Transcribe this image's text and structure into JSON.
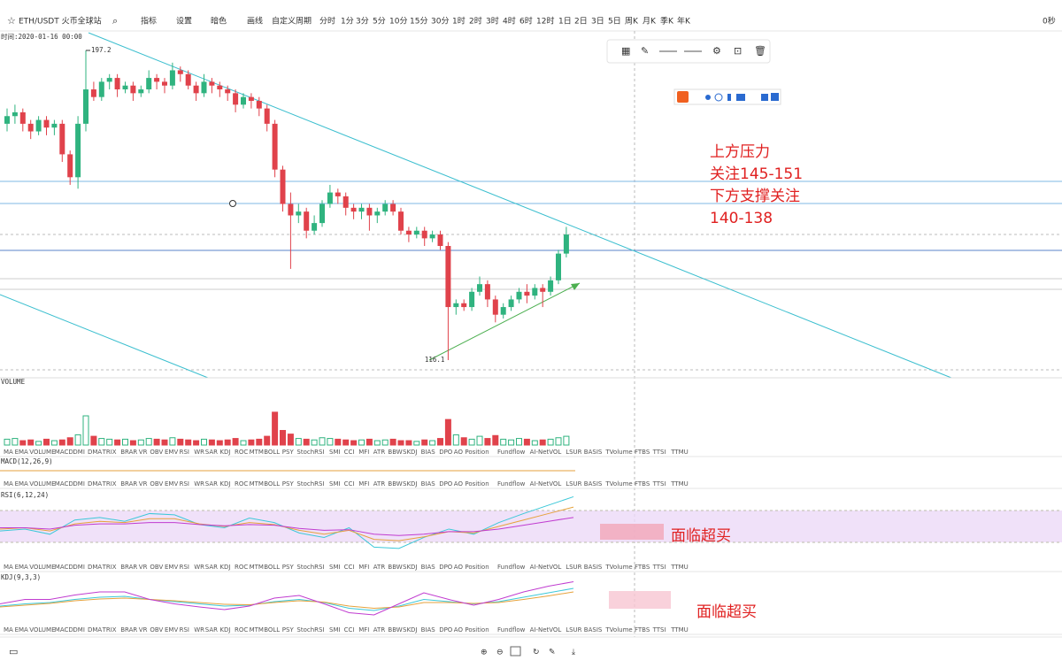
{
  "toolbar": {
    "symbol": "ETH/USDT 火币全球站",
    "tools": [
      "指标",
      "设置",
      "暗色",
      "画线"
    ],
    "custom_period": "自定义周期",
    "periods": [
      "分时",
      "1分",
      "3分",
      "5分",
      "10分",
      "15分",
      "30分",
      "1时",
      "2时",
      "3时",
      "4时",
      "6时",
      "12时",
      "1日",
      "2日",
      "3日",
      "5日",
      "周K",
      "月K",
      "季K",
      "年K"
    ],
    "active_period": "1日",
    "timer": "0秒"
  },
  "time_label": "时间:2020-01-16 00:00",
  "annotations": [
    "上方压力",
    "关注145-151",
    "下方支撑关注",
    "140-138"
  ],
  "indicator_tabs": [
    "MA",
    "EMA",
    "VOLUME",
    "MACD",
    "DMI",
    "DMA",
    "TRIX",
    "BRAR",
    "VR",
    "OBV",
    "EMV",
    "RSI",
    "WR",
    "SAR",
    "KDJ",
    "ROC",
    "MTM",
    "BOLL",
    "PSY",
    "StochRSI",
    "SMI",
    "CCI",
    "MFI",
    "ATR",
    "BBW",
    "SKDJ",
    "BIAS",
    "DPO",
    "AO",
    "Position",
    "Fundflow",
    "AI-NetVOL",
    "LSUR",
    "BASIS",
    "TVolume",
    "FTBS",
    "TTSI",
    "TTMU"
  ],
  "panels": {
    "volume": {
      "label": "VOLUME",
      "active": "VOLUME"
    },
    "macd": {
      "label": "MACD(12,26,9)",
      "active": "MACD"
    },
    "rsi": {
      "label": "RSI(6,12,24)",
      "active": "RSI",
      "note": "面临超买"
    },
    "kdj": {
      "label": "KDJ(9,3,3)",
      "active": "KDJ",
      "note": "面临超买"
    }
  },
  "chart_data": {
    "type": "candlestick",
    "ylim": [
      113.1,
      202.3
    ],
    "up_color": "#2fb37f",
    "down_color": "#e0424b",
    "high_label": 197.2,
    "low_label": 116.1,
    "high_index": 10,
    "low_index": 56,
    "candles": [
      [
        178,
        182,
        176,
        180
      ],
      [
        180,
        183,
        178,
        181
      ],
      [
        181,
        182,
        176,
        178
      ],
      [
        178,
        179,
        174,
        176
      ],
      [
        176,
        180,
        175,
        179
      ],
      [
        179,
        180,
        175,
        177
      ],
      [
        177,
        179,
        175,
        178
      ],
      [
        178,
        179,
        168,
        170
      ],
      [
        170,
        171,
        162,
        164
      ],
      [
        164,
        180,
        161,
        178
      ],
      [
        178,
        197.2,
        176,
        187
      ],
      [
        187,
        189,
        184,
        185
      ],
      [
        185,
        190,
        184,
        189
      ],
      [
        189,
        191,
        187,
        190
      ],
      [
        190,
        191,
        185,
        187
      ],
      [
        187,
        189,
        186,
        188
      ],
      [
        188,
        189,
        184,
        186
      ],
      [
        186,
        188,
        185,
        187
      ],
      [
        187,
        192,
        186,
        190
      ],
      [
        190,
        191,
        187,
        189
      ],
      [
        189,
        190,
        186,
        188
      ],
      [
        188,
        194,
        187,
        192
      ],
      [
        192,
        193,
        189,
        191
      ],
      [
        191,
        192,
        187,
        188
      ],
      [
        188,
        189,
        184,
        186
      ],
      [
        186,
        191,
        185,
        189
      ],
      [
        189,
        190,
        186,
        188
      ],
      [
        188,
        189,
        185,
        187
      ],
      [
        187,
        188,
        184,
        186
      ],
      [
        186,
        187,
        181,
        183
      ],
      [
        183,
        186,
        182,
        185
      ],
      [
        185,
        186,
        182,
        184
      ],
      [
        184,
        185,
        180,
        182
      ],
      [
        182,
        183,
        176,
        178
      ],
      [
        178,
        179,
        164,
        166
      ],
      [
        166,
        167,
        155,
        157
      ],
      [
        157,
        160,
        140,
        154
      ],
      [
        154,
        157,
        152,
        155
      ],
      [
        155,
        156,
        148,
        150
      ],
      [
        150,
        154,
        149,
        152
      ],
      [
        152,
        158,
        151,
        157
      ],
      [
        157,
        162,
        156,
        160
      ],
      [
        160,
        161,
        157,
        159
      ],
      [
        159,
        160,
        154,
        156
      ],
      [
        156,
        157,
        153,
        155
      ],
      [
        155,
        157,
        153,
        156
      ],
      [
        156,
        157,
        150,
        154
      ],
      [
        154,
        156,
        152,
        155
      ],
      [
        155,
        158,
        154,
        157
      ],
      [
        157,
        158,
        154,
        155
      ],
      [
        155,
        156,
        149,
        150
      ],
      [
        150,
        151,
        147,
        149
      ],
      [
        149,
        151,
        148,
        150
      ],
      [
        150,
        151,
        146,
        148
      ],
      [
        148,
        150,
        147,
        149
      ],
      [
        149,
        150,
        145,
        146
      ],
      [
        146,
        147,
        116.1,
        130
      ],
      [
        130,
        132,
        128,
        131
      ],
      [
        131,
        132,
        129,
        130
      ],
      [
        130,
        135,
        129,
        134
      ],
      [
        134,
        138,
        133,
        136
      ],
      [
        136,
        137,
        130,
        132
      ],
      [
        132,
        133,
        126,
        128
      ],
      [
        128,
        131,
        127,
        130
      ],
      [
        130,
        133,
        129,
        132
      ],
      [
        132,
        135,
        131,
        134
      ],
      [
        134,
        136,
        131,
        133
      ],
      [
        133,
        136,
        132,
        135
      ],
      [
        135,
        136,
        130,
        134
      ],
      [
        134,
        138,
        133,
        137
      ],
      [
        137,
        145,
        136,
        144
      ],
      [
        144,
        151,
        143,
        149
      ]
    ],
    "volume": [
      8,
      9,
      6,
      7,
      5,
      8,
      6,
      7,
      10,
      14,
      40,
      12,
      9,
      8,
      7,
      8,
      6,
      7,
      9,
      8,
      7,
      10,
      8,
      7,
      6,
      8,
      7,
      6,
      7,
      9,
      6,
      7,
      8,
      12,
      45,
      20,
      15,
      9,
      8,
      7,
      10,
      9,
      8,
      7,
      6,
      7,
      8,
      6,
      7,
      8,
      6,
      6,
      5,
      7,
      6,
      9,
      35,
      14,
      10,
      8,
      12,
      9,
      13,
      8,
      7,
      9,
      8,
      6,
      7,
      8,
      10,
      12
    ],
    "vlim": [
      0,
      80
    ],
    "rsi": [
      {
        "color": "#3cc8d8",
        "values": [
          45,
          48,
          40,
          62,
          66,
          60,
          72,
          70,
          55,
          50,
          65,
          58,
          42,
          35,
          50,
          20,
          18,
          35,
          48,
          40,
          58,
          72,
          85,
          98
        ]
      },
      {
        "color": "#e6a23c",
        "values": [
          48,
          50,
          45,
          56,
          60,
          58,
          64,
          64,
          56,
          52,
          58,
          55,
          46,
          40,
          46,
          32,
          30,
          36,
          44,
          42,
          52,
          62,
          72,
          82
        ]
      },
      {
        "color": "#c03cd0",
        "values": [
          50,
          50,
          48,
          54,
          56,
          56,
          58,
          58,
          55,
          53,
          55,
          54,
          49,
          46,
          47,
          40,
          38,
          40,
          44,
          44,
          48,
          54,
          60,
          66
        ]
      }
    ],
    "rsilim": [
      0,
      100
    ],
    "kdj": [
      {
        "color": "#3cc8d8",
        "values": [
          40,
          45,
          48,
          55,
          60,
          62,
          55,
          50,
          45,
          40,
          42,
          50,
          55,
          48,
          35,
          30,
          40,
          55,
          50,
          45,
          50,
          60,
          70,
          80
        ]
      },
      {
        "color": "#e6a23c",
        "values": [
          38,
          42,
          46,
          52,
          56,
          58,
          55,
          52,
          48,
          44,
          43,
          48,
          52,
          49,
          40,
          35,
          38,
          48,
          48,
          46,
          48,
          55,
          63,
          72
        ]
      },
      {
        "color": "#c03cd0",
        "values": [
          45,
          55,
          55,
          65,
          72,
          72,
          55,
          45,
          38,
          32,
          40,
          58,
          64,
          45,
          25,
          20,
          45,
          70,
          55,
          42,
          55,
          72,
          85,
          95
        ]
      }
    ]
  }
}
